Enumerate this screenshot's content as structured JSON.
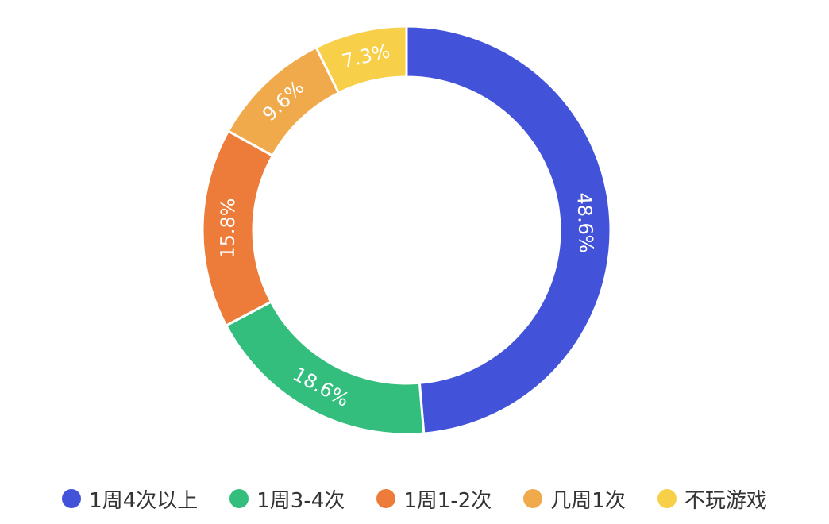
{
  "chart_data": {
    "type": "pie",
    "variant": "donut",
    "title": "",
    "categories": [
      "1周4次以上",
      "1周3-4次",
      "1周1-2次",
      "几周1次",
      "不玩游戏"
    ],
    "values": [
      48.6,
      18.6,
      15.8,
      9.6,
      7.3
    ],
    "labels": [
      "48.6%",
      "18.6%",
      "15.8%",
      "9.6%",
      "7.3%"
    ],
    "colors": [
      "#4353d9",
      "#34be7e",
      "#ed7c3a",
      "#f0a94b",
      "#f8cf48"
    ],
    "start": "12 o'clock",
    "direction": "clockwise",
    "legend": "bottom-center"
  }
}
